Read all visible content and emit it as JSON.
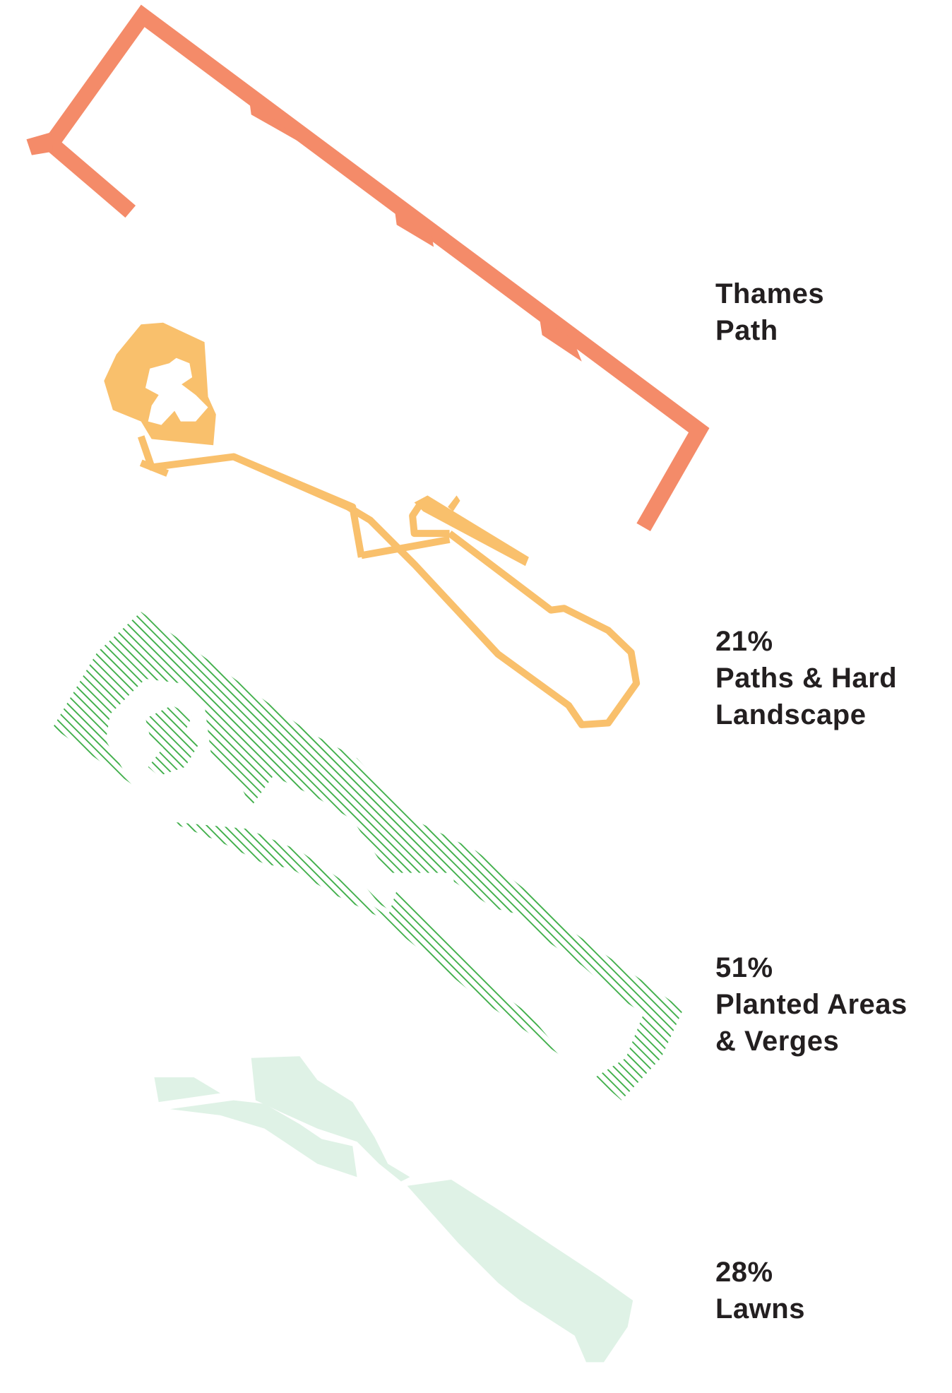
{
  "layers": [
    {
      "lines": [
        "Thames",
        "Path"
      ]
    },
    {
      "percent": "21%",
      "lines": [
        "Paths & Hard",
        "Landscape"
      ]
    },
    {
      "percent": "51%",
      "lines": [
        "Planted Areas",
        "& Verges"
      ]
    },
    {
      "percent": "28%",
      "lines": [
        "Lawns"
      ]
    }
  ]
}
